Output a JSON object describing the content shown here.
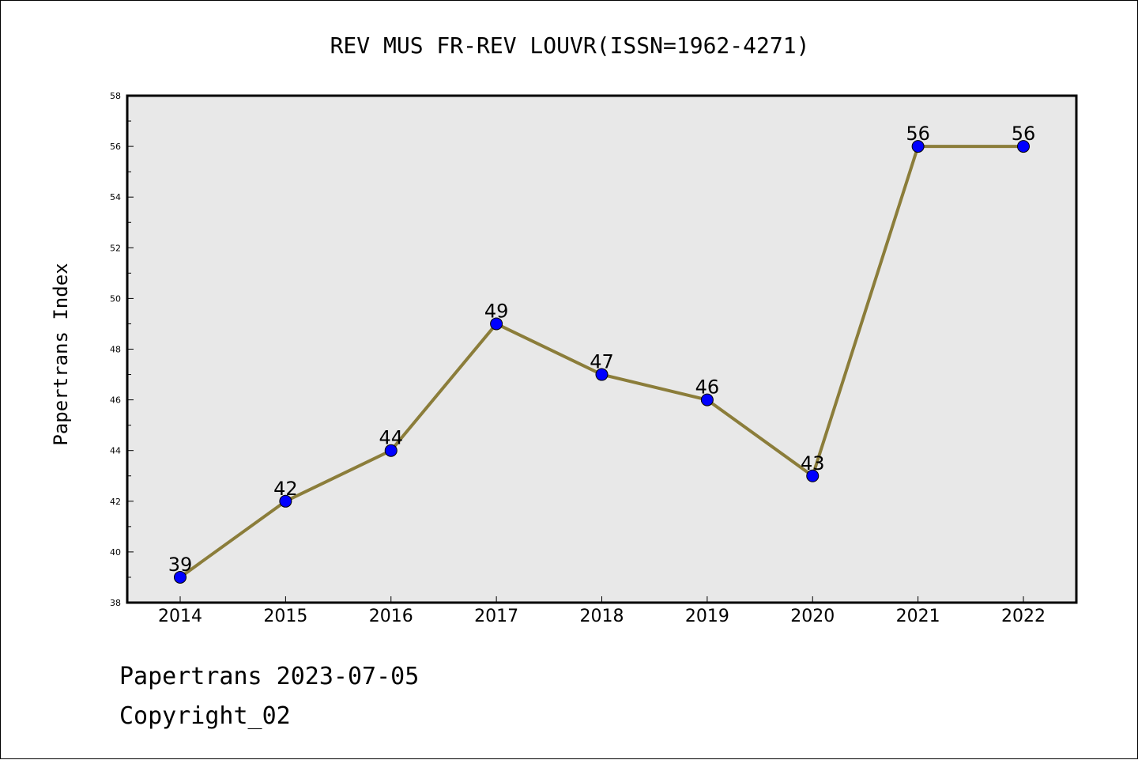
{
  "chart_data": {
    "type": "line",
    "title": "REV MUS FR-REV LOUVR(ISSN=1962-4271)",
    "xlabel": "",
    "ylabel": "Papertrans Index",
    "categories": [
      "2014",
      "2015",
      "2016",
      "2017",
      "2018",
      "2019",
      "2020",
      "2021",
      "2022"
    ],
    "series": [
      {
        "values": [
          39,
          42,
          44,
          49,
          47,
          46,
          43,
          56,
          56
        ]
      }
    ],
    "ylim": [
      38,
      58
    ],
    "yticks": [
      38,
      40,
      42,
      44,
      46,
      48,
      50,
      52,
      54,
      56,
      58
    ],
    "grid": false,
    "data_labels": true,
    "colors": {
      "line": "#8b7d3a",
      "marker": "#0000ff",
      "plot_bg": "#e8e8e8"
    }
  },
  "footer": {
    "line1": "Papertrans 2023-07-05",
    "line2": "Copyright_02"
  }
}
